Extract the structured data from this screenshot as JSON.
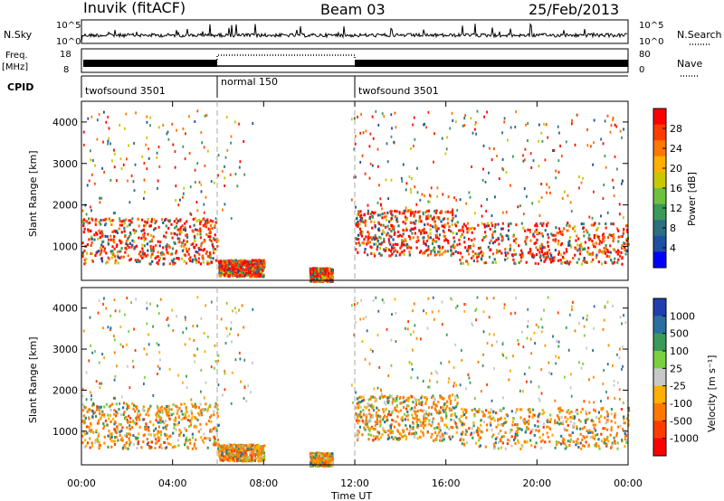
{
  "header": {
    "station": "Inuvik (fitACF)",
    "beam": "Beam 03",
    "date": "25/Feb/2013"
  },
  "strips": {
    "nsky": {
      "label": "N.Sky",
      "tick_top": "10^5",
      "tick_bottom": "10^0"
    },
    "nsearch": {
      "label": "N.Search",
      "tick_top": "10^5",
      "tick_bottom": "10^0"
    },
    "freq": {
      "label_line1": "Freq.",
      "label_line2": "[MHz]",
      "tick_top": "18",
      "tick_bottom": "8"
    },
    "nave": {
      "label": "Nave",
      "tick_top": "80",
      "tick_bottom": "0"
    },
    "cpid": {
      "label": "CPID",
      "modes": [
        "twofsound 3501",
        "normal 150",
        "twofsound 3501"
      ]
    }
  },
  "chart_data": [
    {
      "type": "heatmap",
      "panel": "power",
      "ylabel": "Slant Range [km]",
      "xlabel": "Time UT",
      "yticks": [
        "1000",
        "2000",
        "3000",
        "4000"
      ],
      "xticks": [
        "00:00",
        "04:00",
        "08:00",
        "12:00",
        "16:00",
        "20:00",
        "00:00"
      ],
      "ylim": [
        180,
        4500
      ],
      "colorbar": {
        "label": "Power [dB]",
        "ticks": [
          "28",
          "24",
          "20",
          "16",
          "12",
          "8",
          "4"
        ],
        "colors": [
          "#ff0000",
          "#ff3c00",
          "#ff7800",
          "#ffb000",
          "#c8c800",
          "#70c040",
          "#3a9a5a",
          "#2c7080",
          "#1f4fa0",
          "#0000ff"
        ]
      },
      "bands": [
        {
          "t0": 0.0,
          "t1": 6.0,
          "r0": 600,
          "r1": 1700,
          "level": "high"
        },
        {
          "t0": 6.0,
          "t1": 8.0,
          "r0": 300,
          "r1": 700,
          "level": "mid"
        },
        {
          "t0": 10.0,
          "t1": 11.0,
          "r0": 180,
          "r1": 500,
          "level": "high"
        },
        {
          "t0": 12.0,
          "t1": 16.5,
          "r0": 800,
          "r1": 1900,
          "level": "high"
        },
        {
          "t0": 16.5,
          "t1": 24.0,
          "r0": 600,
          "r1": 1600,
          "level": "high"
        }
      ]
    },
    {
      "type": "heatmap",
      "panel": "velocity",
      "ylabel": "Slant Range [km]",
      "xlabel": "Time UT",
      "yticks": [
        "1000",
        "2000",
        "3000",
        "4000"
      ],
      "xticks": [
        "00:00",
        "04:00",
        "08:00",
        "12:00",
        "16:00",
        "20:00",
        "00:00"
      ],
      "ylim": [
        180,
        4500
      ],
      "colorbar": {
        "label": "Velocity [m s⁻¹]",
        "ticks": [
          "1000",
          "500",
          "100",
          "25",
          "-25",
          "-100",
          "-500",
          "-1000"
        ],
        "colors": [
          "#1f3fb0",
          "#2a6fa0",
          "#3a9a5a",
          "#7ad040",
          "#c8c8c8",
          "#ffb000",
          "#ff7800",
          "#ff3c00",
          "#ff0000"
        ]
      }
    }
  ]
}
